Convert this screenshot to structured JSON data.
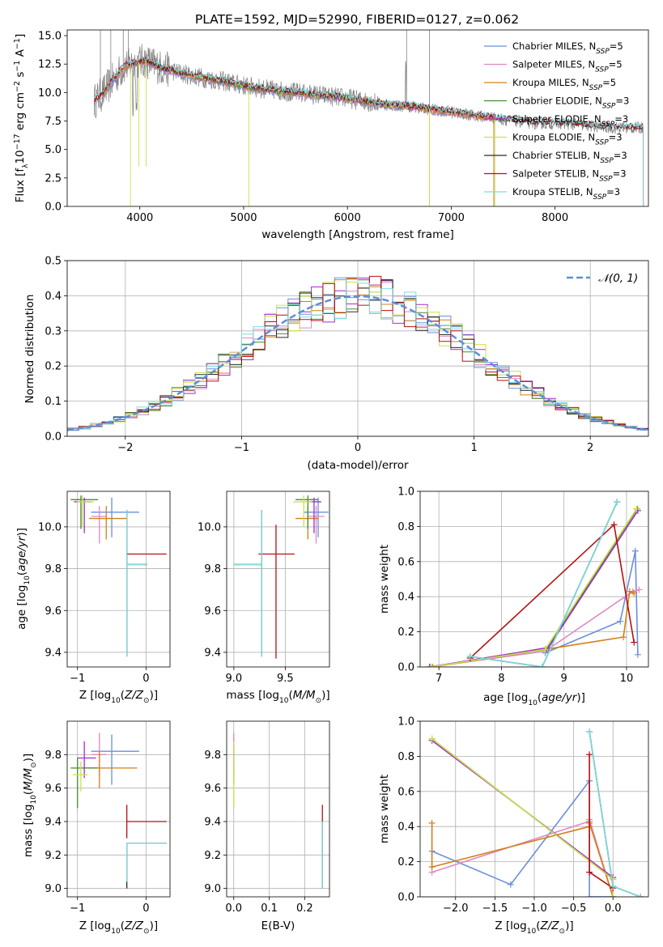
{
  "title": "PLATE=1592, MJD=52990, FIBERID=0127, z=0.062",
  "colors": {
    "Chabrier MILES": "#6a8fdc",
    "Salpeter MILES": "#e088c4",
    "Kroupa MILES": "#d2801a",
    "Chabrier ELODIE": "#4c8a2e",
    "Salpeter ELODIE": "#a22fc6",
    "Kroupa ELODIE": "#c9e24c",
    "Chabrier STELIB": "#2b2b2b",
    "Salpeter STELIB": "#b31212",
    "Kroupa STELIB": "#7edce0",
    "data": "#808080",
    "normal": "#5b8fd6"
  },
  "chart_data": [
    {
      "id": "spectrum",
      "type": "line",
      "title": "PLATE=1592, MJD=52990, FIBERID=0127, z=0.062",
      "xlabel": "wavelength [Angstrom, rest frame]",
      "ylabel": "Flux [f_λ 10^-17 erg cm^-2 s^-1 A^-1]",
      "xlim": [
        3300,
        8900
      ],
      "ylim": [
        0,
        15.5
      ],
      "xticks": [
        4000,
        5000,
        6000,
        7000,
        8000
      ],
      "yticks": [
        0.0,
        2.5,
        5.0,
        7.5,
        10.0,
        12.5,
        15.0
      ],
      "grid": false,
      "legend_position": "top-right",
      "legend": [
        {
          "name": "Chabrier MILES",
          "nssp": "5"
        },
        {
          "name": "Salpeter MILES",
          "nssp": "5"
        },
        {
          "name": "Kroupa MILES",
          "nssp": "5"
        },
        {
          "name": "Chabrier ELODIE",
          "nssp": "3"
        },
        {
          "name": "Salpeter ELODIE",
          "nssp": "3"
        },
        {
          "name": "Kroupa ELODIE",
          "nssp": "3"
        },
        {
          "name": "Chabrier STELIB",
          "nssp": "3"
        },
        {
          "name": "Salpeter STELIB",
          "nssp": "3"
        },
        {
          "name": "Kroupa STELIB",
          "nssp": "3"
        }
      ],
      "continuum": {
        "x": [
          3570,
          3650,
          3750,
          3850,
          3950,
          4050,
          4200,
          4400,
          4600,
          4800,
          5000,
          5200,
          5400,
          5600,
          5800,
          6000,
          6200,
          6400,
          6600,
          6800,
          7000,
          7200,
          7400,
          7600,
          7800,
          8000,
          8200,
          8400,
          8600,
          8800
        ],
        "y": [
          9.3,
          10.0,
          11.2,
          12.3,
          12.6,
          12.8,
          12.2,
          11.7,
          11.3,
          11.0,
          10.6,
          10.3,
          10.1,
          9.9,
          9.7,
          9.5,
          9.2,
          8.9,
          8.8,
          8.5,
          8.3,
          8.0,
          7.8,
          7.5,
          7.3,
          7.3,
          7.2,
          7.0,
          6.9,
          6.9
        ]
      },
      "data_range": [
        3560,
        8850
      ],
      "model_ranges": {
        "MILES": [
          3560,
          7410
        ],
        "ELODIE": [
          3900,
          6790
        ],
        "STELIB": [
          3560,
          8850
        ]
      }
    },
    {
      "id": "residuals",
      "type": "step-histogram",
      "xlabel": "(data-model)/error",
      "ylabel": "Normed distribution",
      "xlim": [
        -2.5,
        2.5
      ],
      "ylim": [
        0.0,
        0.5
      ],
      "xticks": [
        -2,
        -1,
        0,
        1,
        2
      ],
      "yticks": [
        0.0,
        0.1,
        0.2,
        0.3,
        0.4,
        0.5
      ],
      "grid": true,
      "legend_position": "top-right",
      "legend": [
        "𝒩(0, 1)"
      ],
      "bin_width": 0.1
    },
    {
      "id": "age-vs-Z",
      "type": "errorbar",
      "xlabel": "Z [log10(Z/Z⊙)]",
      "ylabel": "age [log10(age/yr)]",
      "xlim": [
        -1.15,
        0.35
      ],
      "ylim": [
        9.33,
        10.17
      ],
      "xticks": [
        -1,
        0
      ],
      "yticks": [
        9.4,
        9.6,
        9.8,
        10.0
      ],
      "grid": true,
      "points": [
        {
          "series": "Chabrier MILES",
          "x": -0.5,
          "xerr": [
            0.3,
            0.4
          ],
          "y": 10.07,
          "yerr": [
            0.12,
            0.07
          ]
        },
        {
          "series": "Salpeter MILES",
          "x": -0.68,
          "xerr": [
            0.12,
            0.1
          ],
          "y": 10.05,
          "yerr": [
            0.13,
            0.05
          ]
        },
        {
          "series": "Kroupa MILES",
          "x": -0.58,
          "xerr": [
            0.25,
            0.3
          ],
          "y": 10.04,
          "yerr": [
            0.1,
            0.06
          ]
        },
        {
          "series": "Chabrier ELODIE",
          "x": -0.95,
          "xerr": [
            0.15,
            0.25
          ],
          "y": 10.13,
          "yerr": [
            0.14,
            0.02
          ]
        },
        {
          "series": "Salpeter ELODIE",
          "x": -0.9,
          "xerr": [
            0.15,
            0.1
          ],
          "y": 10.12,
          "yerr": [
            0.15,
            0.02
          ]
        },
        {
          "series": "Kroupa ELODIE",
          "x": -0.93,
          "xerr": [
            0.08,
            0.17
          ],
          "y": 10.12,
          "yerr": [
            0.12,
            0.03
          ]
        },
        {
          "series": "Chabrier STELIB",
          "x": -0.28,
          "xerr": [
            0.0,
            0.3
          ],
          "y": 9.82,
          "yerr": [
            0.44,
            0.26
          ]
        },
        {
          "series": "Salpeter STELIB",
          "x": -0.28,
          "xerr": [
            0.0,
            0.58
          ],
          "y": 9.87,
          "yerr": [
            0.0,
            0.0
          ]
        },
        {
          "series": "Kroupa STELIB",
          "x": -0.28,
          "xerr": [
            0.0,
            0.3
          ],
          "y": 9.82,
          "yerr": [
            0.44,
            0.26
          ]
        }
      ]
    },
    {
      "id": "age-vs-mass",
      "type": "errorbar",
      "xlabel": "mass [log10(M/M⊙)]",
      "ylabel": "",
      "xlim": [
        8.93,
        9.93
      ],
      "ylim": [
        9.33,
        10.17
      ],
      "xticks": [
        9.0,
        9.5
      ],
      "yticks": [
        9.4,
        9.6,
        9.8,
        10.0
      ],
      "grid": true,
      "points": [
        {
          "series": "Chabrier MILES",
          "x": 9.82,
          "xerr": [
            0.14,
            0.1
          ],
          "y": 10.07,
          "yerr": [
            0.12,
            0.07
          ]
        },
        {
          "series": "Salpeter MILES",
          "x": 9.8,
          "xerr": [
            0.08,
            0.08
          ],
          "y": 10.05,
          "yerr": [
            0.13,
            0.05
          ]
        },
        {
          "series": "Kroupa MILES",
          "x": 9.72,
          "xerr": [
            0.12,
            0.1
          ],
          "y": 10.04,
          "yerr": [
            0.1,
            0.06
          ]
        },
        {
          "series": "Chabrier ELODIE",
          "x": 9.72,
          "xerr": [
            0.12,
            0.1
          ],
          "y": 10.13,
          "yerr": [
            0.14,
            0.02
          ]
        },
        {
          "series": "Salpeter ELODIE",
          "x": 9.78,
          "xerr": [
            0.08,
            0.07
          ],
          "y": 10.12,
          "yerr": [
            0.15,
            0.02
          ]
        },
        {
          "series": "Kroupa ELODIE",
          "x": 9.68,
          "xerr": [
            0.1,
            0.08
          ],
          "y": 10.12,
          "yerr": [
            0.12,
            0.03
          ]
        },
        {
          "series": "Chabrier STELIB",
          "x": 9.27,
          "xerr": [
            0.27,
            0.0
          ],
          "y": 9.82,
          "yerr": [
            0.44,
            0.26
          ]
        },
        {
          "series": "Salpeter STELIB",
          "x": 9.41,
          "xerr": [
            0.17,
            0.18
          ],
          "y": 9.87,
          "yerr": [
            0.5,
            0.14
          ]
        },
        {
          "series": "Kroupa STELIB",
          "x": 9.27,
          "xerr": [
            0.27,
            0.0
          ],
          "y": 9.82,
          "yerr": [
            0.44,
            0.26
          ]
        }
      ]
    },
    {
      "id": "weight-vs-age",
      "type": "line",
      "xlabel": "age [log10(age/yr)]",
      "ylabel": "mass weight",
      "xlim": [
        6.7,
        10.35
      ],
      "ylim": [
        0.0,
        1.0
      ],
      "xticks": [
        7,
        8,
        9,
        10
      ],
      "yticks": [
        0.0,
        0.2,
        0.4,
        0.6,
        0.8,
        1.0
      ],
      "grid": true,
      "series": [
        {
          "name": "Chabrier MILES",
          "x": [
            8.7,
            9.9,
            10.14,
            10.18
          ],
          "y": [
            0.08,
            0.26,
            0.66,
            0.07
          ]
        },
        {
          "name": "Salpeter MILES",
          "x": [
            6.87,
            8.7,
            10.1,
            10.2
          ],
          "y": [
            0.0,
            0.09,
            0.43,
            0.44
          ]
        },
        {
          "name": "Kroupa MILES",
          "x": [
            6.9,
            8.7,
            9.95,
            10.05,
            10.12
          ],
          "y": [
            0.0,
            0.1,
            0.17,
            0.43,
            0.42
          ]
        },
        {
          "name": "Chabrier ELODIE",
          "x": [
            6.85,
            8.72,
            10.17
          ],
          "y": [
            0.0,
            0.1,
            0.9
          ]
        },
        {
          "name": "Salpeter ELODIE",
          "x": [
            6.85,
            8.75,
            10.18
          ],
          "y": [
            0.0,
            0.11,
            0.89
          ]
        },
        {
          "name": "Kroupa ELODIE",
          "x": [
            6.87,
            8.7,
            10.16
          ],
          "y": [
            0.0,
            0.1,
            0.9
          ]
        },
        {
          "name": "Chabrier STELIB",
          "x": [
            7.5,
            8.65,
            9.85
          ],
          "y": [
            0.06,
            0.0,
            0.94
          ]
        },
        {
          "name": "Salpeter STELIB",
          "x": [
            7.5,
            9.8,
            10.12
          ],
          "y": [
            0.05,
            0.81,
            0.14
          ]
        },
        {
          "name": "Kroupa STELIB",
          "x": [
            7.5,
            8.65,
            9.85
          ],
          "y": [
            0.06,
            0.0,
            0.94
          ]
        }
      ]
    },
    {
      "id": "mass-vs-Z",
      "type": "errorbar",
      "xlabel": "Z [log10(Z/Z⊙)]",
      "ylabel": "mass [log10(M/M⊙)]",
      "xlim": [
        -1.15,
        0.35
      ],
      "ylim": [
        8.95,
        10.0
      ],
      "xticks": [
        -1,
        0
      ],
      "yticks": [
        9.0,
        9.2,
        9.4,
        9.6,
        9.8
      ],
      "grid": true,
      "points": [
        {
          "series": "Chabrier MILES",
          "x": -0.5,
          "xerr": [
            0.3,
            0.4
          ],
          "y": 9.82,
          "yerr": [
            0.2,
            0.1
          ]
        },
        {
          "series": "Salpeter MILES",
          "x": -0.68,
          "xerr": [
            0.12,
            0.1
          ],
          "y": 9.8,
          "yerr": [
            0.13,
            0.13
          ]
        },
        {
          "series": "Kroupa MILES",
          "x": -0.68,
          "xerr": [
            0.25,
            0.55
          ],
          "y": 9.72,
          "yerr": [
            0.12,
            0.1
          ]
        },
        {
          "series": "Chabrier ELODIE",
          "x": -1.0,
          "xerr": [
            0.1,
            0.3
          ],
          "y": 9.72,
          "yerr": [
            0.24,
            0.06
          ]
        },
        {
          "series": "Salpeter ELODIE",
          "x": -0.9,
          "xerr": [
            0.1,
            0.17
          ],
          "y": 9.78,
          "yerr": [
            0.12,
            0.1
          ]
        },
        {
          "series": "Kroupa ELODIE",
          "x": -0.95,
          "xerr": [
            0.12,
            0.1
          ],
          "y": 9.68,
          "yerr": [
            0.1,
            0.08
          ]
        },
        {
          "series": "Chabrier STELIB",
          "x": -0.28,
          "xerr": [
            0.0,
            0.58
          ],
          "y": 9.27,
          "yerr": [
            0.27,
            0.0
          ]
        },
        {
          "series": "Salpeter STELIB",
          "x": -0.28,
          "xerr": [
            0.0,
            0.58
          ],
          "y": 9.4,
          "yerr": [
            0.1,
            0.1
          ]
        },
        {
          "series": "Kroupa STELIB",
          "x": -0.28,
          "xerr": [
            0.0,
            0.58
          ],
          "y": 9.27,
          "yerr": [
            0.23,
            0.0
          ]
        }
      ]
    },
    {
      "id": "mass-vs-ebv",
      "type": "errorbar",
      "xlabel": "E(B-V)",
      "ylabel": "",
      "xlim": [
        -0.02,
        0.27
      ],
      "ylim": [
        8.95,
        10.0
      ],
      "xticks": [
        0.0,
        0.1,
        0.2
      ],
      "yticks": [
        9.0,
        9.2,
        9.4,
        9.6,
        9.8
      ],
      "grid": true,
      "points": [
        {
          "series": "Chabrier MILES",
          "x": 0.0,
          "xerr": [
            0.0,
            0.0
          ],
          "y": 9.82,
          "yerr": [
            0.08,
            0.08
          ]
        },
        {
          "series": "Salpeter MILES",
          "x": 0.0,
          "xerr": [
            0.0,
            0.0
          ],
          "y": 9.8,
          "yerr": [
            0.13,
            0.13
          ]
        },
        {
          "series": "Kroupa MILES",
          "x": 0.0,
          "xerr": [
            0.0,
            0.0
          ],
          "y": 9.72,
          "yerr": [
            0.1,
            0.1
          ]
        },
        {
          "series": "Chabrier ELODIE",
          "x": 0.0,
          "xerr": [
            0.0,
            0.0
          ],
          "y": 9.72,
          "yerr": [
            0.1,
            0.1
          ]
        },
        {
          "series": "Salpeter ELODIE",
          "x": 0.0,
          "xerr": [
            0.0,
            0.0
          ],
          "y": 9.78,
          "yerr": [
            0.08,
            0.08
          ]
        },
        {
          "series": "Kroupa ELODIE",
          "x": 0.0,
          "xerr": [
            0.0,
            0.0
          ],
          "y": 9.68,
          "yerr": [
            0.2,
            0.2
          ]
        },
        {
          "series": "Chabrier STELIB",
          "x": 0.25,
          "xerr": [
            0.0,
            0.0
          ],
          "y": 9.2,
          "yerr": [
            0.2,
            0.2
          ]
        },
        {
          "series": "Salpeter STELIB",
          "x": 0.25,
          "xerr": [
            0.0,
            0.0
          ],
          "y": 9.4,
          "yerr": [
            0.1,
            0.1
          ]
        },
        {
          "series": "Kroupa STELIB",
          "x": 0.25,
          "xerr": [
            0.0,
            0.0
          ],
          "y": 9.2,
          "yerr": [
            0.2,
            0.2
          ]
        }
      ]
    },
    {
      "id": "weight-vs-Z",
      "type": "line",
      "xlabel": "Z [log10(Z/Z⊙)]",
      "ylabel": "mass weight",
      "xlim": [
        -2.45,
        0.45
      ],
      "ylim": [
        0.0,
        1.0
      ],
      "xticks": [
        -2.0,
        -1.5,
        -1.0,
        -0.5,
        0.0
      ],
      "yticks": [
        0.0,
        0.2,
        0.4,
        0.6,
        0.8,
        1.0
      ],
      "grid": true,
      "series": [
        {
          "name": "Chabrier MILES",
          "x": [
            -2.3,
            -1.3,
            -0.3,
            -0.3,
            0.0
          ],
          "y": [
            0.26,
            0.07,
            0.66,
            0.0,
            0.0
          ]
        },
        {
          "name": "Salpeter MILES",
          "x": [
            -2.3,
            -0.3,
            -0.3,
            0.0
          ],
          "y": [
            0.14,
            0.43,
            0.44,
            0.0
          ]
        },
        {
          "name": "Kroupa MILES",
          "x": [
            -2.3,
            -2.3,
            -0.3,
            -0.3,
            0.0
          ],
          "y": [
            0.42,
            0.17,
            0.4,
            0.42,
            0.0
          ]
        },
        {
          "name": "Chabrier ELODIE",
          "x": [
            -2.3,
            0.0,
            0.0
          ],
          "y": [
            0.9,
            0.1,
            0.0
          ]
        },
        {
          "name": "Salpeter ELODIE",
          "x": [
            -2.3,
            0.0,
            0.0
          ],
          "y": [
            0.89,
            0.11,
            0.0
          ]
        },
        {
          "name": "Kroupa ELODIE",
          "x": [
            -2.3,
            0.0,
            0.0
          ],
          "y": [
            0.9,
            0.1,
            0.0
          ]
        },
        {
          "name": "Chabrier STELIB",
          "x": [
            -0.3,
            0.0,
            0.35
          ],
          "y": [
            0.94,
            0.06,
            0.0
          ]
        },
        {
          "name": "Salpeter STELIB",
          "x": [
            -0.3,
            -0.3,
            0.0
          ],
          "y": [
            0.81,
            0.14,
            0.05
          ]
        },
        {
          "name": "Kroupa STELIB",
          "x": [
            -0.3,
            0.0,
            0.35
          ],
          "y": [
            0.94,
            0.06,
            0.0
          ]
        }
      ]
    }
  ]
}
